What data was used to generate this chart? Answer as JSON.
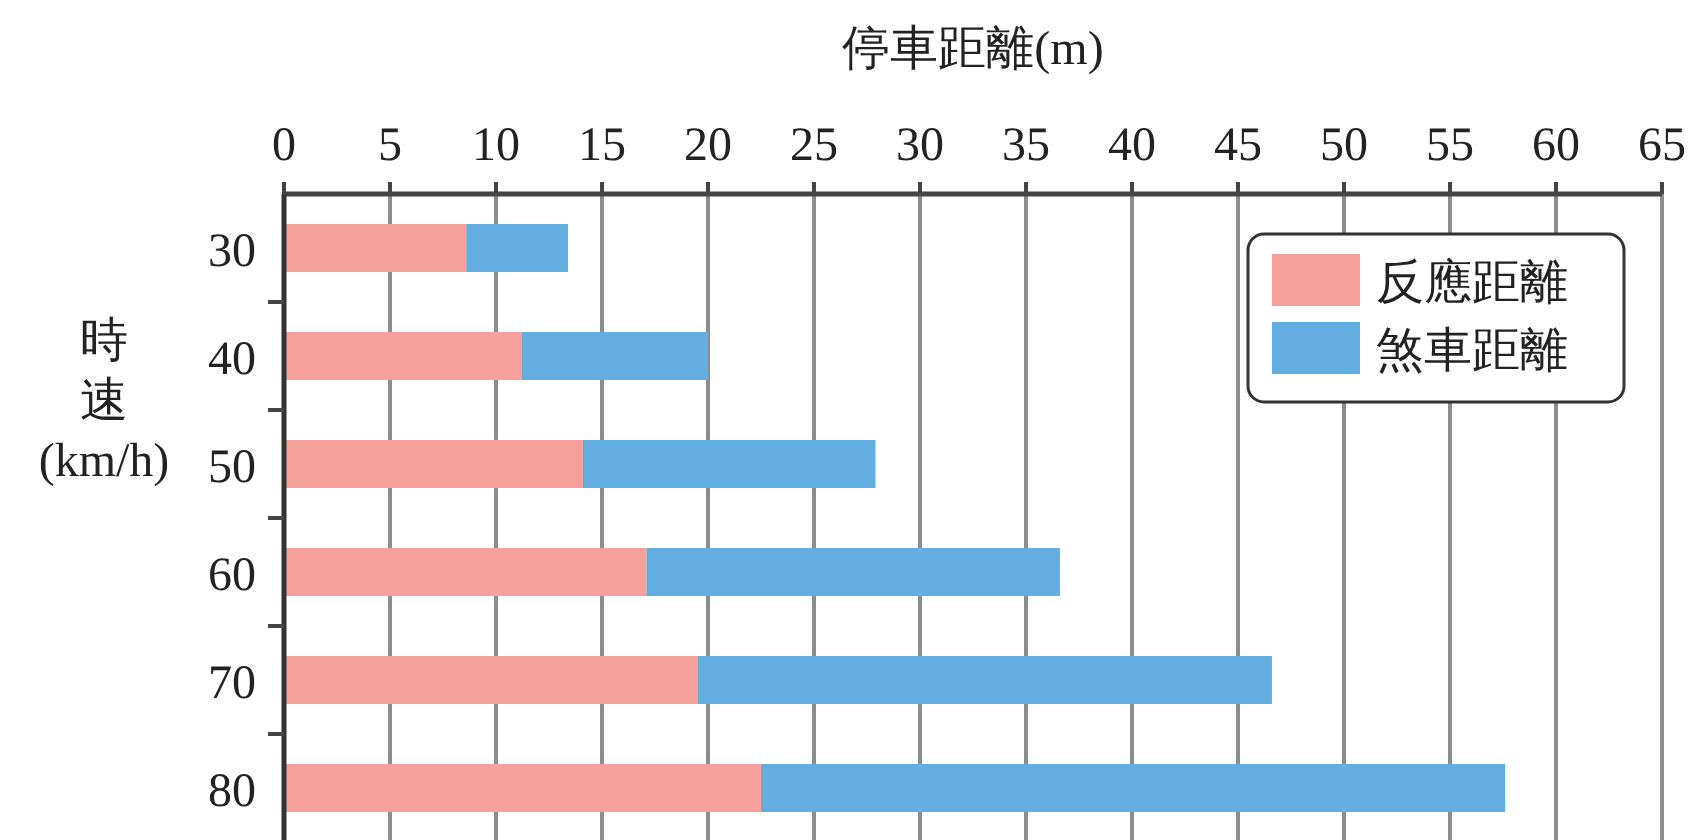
{
  "chart_data": {
    "type": "bar",
    "orientation": "horizontal",
    "stacked": true,
    "xlabel": "停車距離(m)",
    "ylabel": "時速(km/h)",
    "categories": [
      "30",
      "40",
      "50",
      "60",
      "70",
      "80"
    ],
    "series": [
      {
        "name": "反應距離",
        "color": "#f5a09a",
        "values": [
          8.6,
          11.2,
          14.1,
          17.1,
          19.5,
          22.5
        ]
      },
      {
        "name": "煞車距離",
        "color": "#62aee0",
        "values": [
          4.8,
          8.8,
          13.8,
          19.5,
          27.1,
          35.1
        ]
      }
    ],
    "xlim": [
      0,
      65
    ],
    "xticks": [
      0,
      5,
      10,
      15,
      20,
      25,
      30,
      35,
      40,
      45,
      50,
      55,
      60,
      65
    ],
    "grid": "x",
    "legend": "top right"
  }
}
